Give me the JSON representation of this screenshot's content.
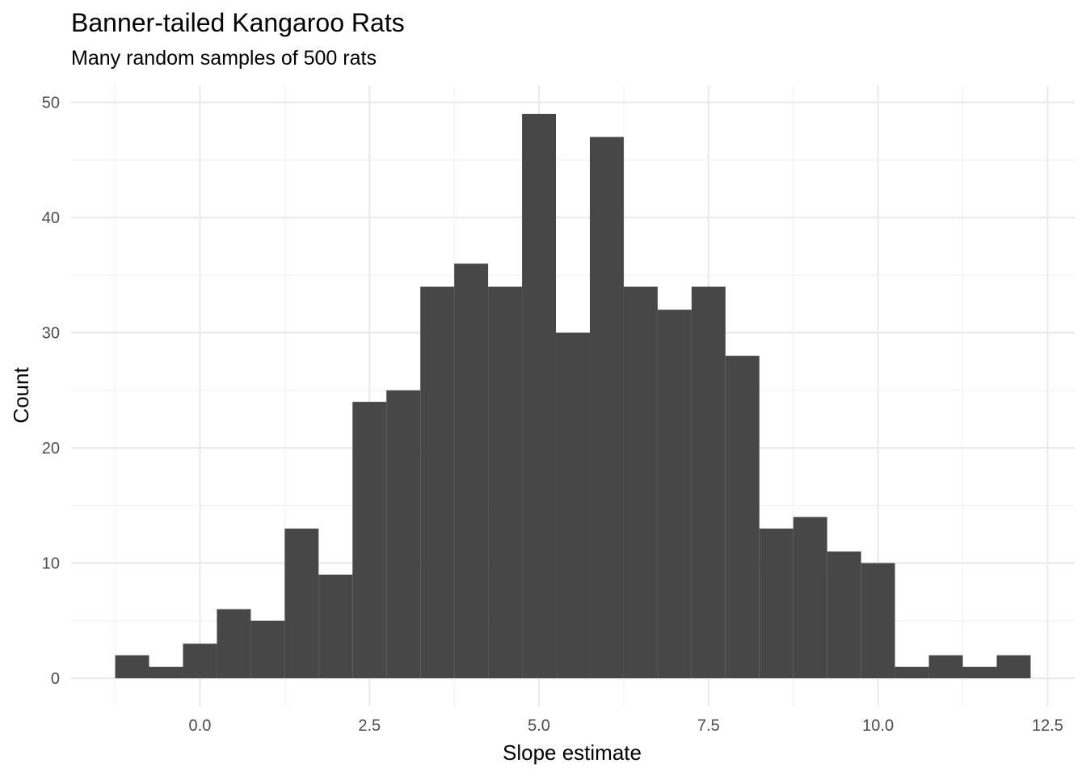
{
  "chart_data": {
    "type": "bar",
    "subtype": "histogram",
    "title": "Banner-tailed Kangaroo Rats",
    "subtitle": "Many random samples of 500 rats",
    "xlabel": "Slope estimate",
    "ylabel": "Count",
    "bin_width": 0.5,
    "first_bin_start": -1.25,
    "bins": [
      {
        "x0": -1.25,
        "x1": -0.75,
        "count": 2
      },
      {
        "x0": -0.75,
        "x1": -0.25,
        "count": 1
      },
      {
        "x0": -0.25,
        "x1": 0.25,
        "count": 3
      },
      {
        "x0": 0.25,
        "x1": 0.75,
        "count": 6
      },
      {
        "x0": 0.75,
        "x1": 1.25,
        "count": 5
      },
      {
        "x0": 1.25,
        "x1": 1.75,
        "count": 13
      },
      {
        "x0": 1.75,
        "x1": 2.25,
        "count": 9
      },
      {
        "x0": 2.25,
        "x1": 2.75,
        "count": 24
      },
      {
        "x0": 2.75,
        "x1": 3.25,
        "count": 25
      },
      {
        "x0": 3.25,
        "x1": 3.75,
        "count": 34
      },
      {
        "x0": 3.75,
        "x1": 4.25,
        "count": 36
      },
      {
        "x0": 4.25,
        "x1": 4.75,
        "count": 34
      },
      {
        "x0": 4.75,
        "x1": 5.25,
        "count": 49
      },
      {
        "x0": 5.25,
        "x1": 5.75,
        "count": 30
      },
      {
        "x0": 5.75,
        "x1": 6.25,
        "count": 47
      },
      {
        "x0": 6.25,
        "x1": 6.75,
        "count": 34
      },
      {
        "x0": 6.75,
        "x1": 7.25,
        "count": 32
      },
      {
        "x0": 7.25,
        "x1": 7.75,
        "count": 34
      },
      {
        "x0": 7.75,
        "x1": 8.25,
        "count": 28
      },
      {
        "x0": 8.25,
        "x1": 8.75,
        "count": 13
      },
      {
        "x0": 8.75,
        "x1": 9.25,
        "count": 14
      },
      {
        "x0": 9.25,
        "x1": 9.75,
        "count": 11
      },
      {
        "x0": 9.75,
        "x1": 10.25,
        "count": 10
      },
      {
        "x0": 10.25,
        "x1": 10.75,
        "count": 1
      },
      {
        "x0": 10.75,
        "x1": 11.25,
        "count": 2
      },
      {
        "x0": 11.25,
        "x1": 11.75,
        "count": 1
      },
      {
        "x0": 11.75,
        "x1": 12.25,
        "count": 2
      }
    ],
    "xlim": [
      -1.9,
      12.9
    ],
    "ylim": [
      -2.45,
      51.45
    ],
    "x_ticks": [
      0.0,
      2.5,
      5.0,
      7.5,
      10.0,
      12.5
    ],
    "x_tick_labels": [
      "0.0",
      "2.5",
      "5.0",
      "7.5",
      "10.0",
      "12.5"
    ],
    "y_ticks": [
      0,
      10,
      20,
      30,
      40,
      50
    ],
    "y_tick_labels": [
      "0",
      "10",
      "20",
      "30",
      "40",
      "50"
    ],
    "grid": true,
    "legend": false,
    "colors": {
      "bar_fill": "#474747",
      "grid_major": "#ebebeb",
      "grid_minor": "#f2f2f2",
      "tick_label": "#4d4d4d",
      "background": "#ffffff"
    }
  }
}
